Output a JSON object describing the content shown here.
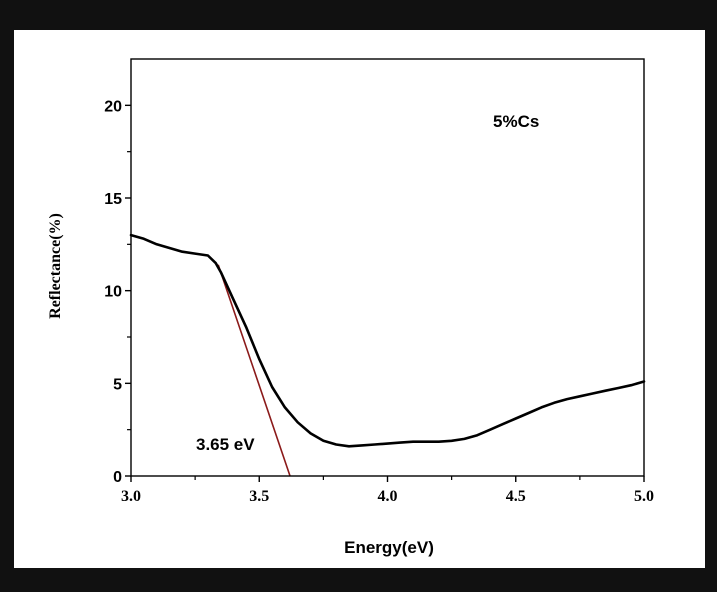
{
  "chart_data": {
    "type": "line",
    "title": "",
    "xlabel": "Energy(eV)",
    "ylabel": "Reflectance(%)",
    "xlim": [
      3.0,
      5.0
    ],
    "ylim": [
      0,
      22.5
    ],
    "x_ticks": [
      3.0,
      3.5,
      4.0,
      4.5,
      5.0
    ],
    "x_tick_labels": [
      "3.0",
      "3.5",
      "4.0",
      "4.5",
      "5.0"
    ],
    "y_ticks": [
      0,
      5,
      10,
      15,
      20
    ],
    "y_tick_labels": [
      "0",
      "5",
      "10",
      "15",
      "20"
    ],
    "grid": false,
    "legend": "none",
    "series": [
      {
        "color": "#000000",
        "x": [
          3.0,
          3.05,
          3.1,
          3.15,
          3.2,
          3.25,
          3.3,
          3.33,
          3.35,
          3.4,
          3.45,
          3.5,
          3.55,
          3.6,
          3.65,
          3.7,
          3.75,
          3.8,
          3.85,
          3.9,
          3.95,
          4.0,
          4.05,
          4.1,
          4.15,
          4.2,
          4.25,
          4.3,
          4.35,
          4.4,
          4.45,
          4.5,
          4.55,
          4.6,
          4.65,
          4.7,
          4.75,
          4.8,
          4.85,
          4.9,
          4.95,
          5.0
        ],
        "y": [
          13.0,
          12.8,
          12.5,
          12.3,
          12.1,
          12.0,
          11.9,
          11.5,
          11.0,
          9.5,
          8.0,
          6.3,
          4.8,
          3.7,
          2.9,
          2.3,
          1.9,
          1.7,
          1.6,
          1.65,
          1.7,
          1.75,
          1.8,
          1.85,
          1.85,
          1.85,
          1.9,
          2.0,
          2.2,
          2.5,
          2.8,
          3.1,
          3.4,
          3.7,
          3.95,
          4.15,
          4.3,
          4.45,
          4.6,
          4.75,
          4.9,
          5.1
        ]
      }
    ],
    "tangent_line": {
      "color": "#8b1a1a",
      "x": [
        3.34,
        3.62
      ],
      "y": [
        11.4,
        0
      ]
    },
    "annotations": {
      "sample": "5%Cs",
      "band_gap": "3.65 eV"
    }
  }
}
